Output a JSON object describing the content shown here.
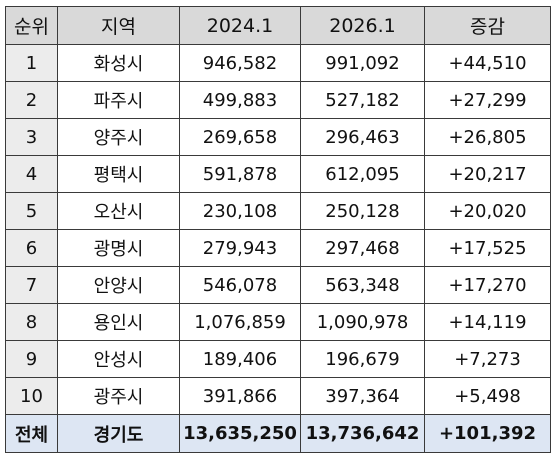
{
  "table": {
    "headers": [
      "순위",
      "지역",
      "2024.1",
      "2026.1",
      "증감"
    ],
    "rows": [
      [
        "1",
        "화성시",
        "946,582",
        "991,092",
        "+44,510"
      ],
      [
        "2",
        "파주시",
        "499,883",
        "527,182",
        "+27,299"
      ],
      [
        "3",
        "양주시",
        "269,658",
        "296,463",
        "+26,805"
      ],
      [
        "4",
        "평택시",
        "591,878",
        "612,095",
        "+20,217"
      ],
      [
        "5",
        "오산시",
        "230,108",
        "250,128",
        "+20,020"
      ],
      [
        "6",
        "광명시",
        "279,943",
        "297,468",
        "+17,525"
      ],
      [
        "7",
        "안양시",
        "546,078",
        "563,348",
        "+17,270"
      ],
      [
        "8",
        "용인시",
        "1,076,859",
        "1,090,978",
        "+14,119"
      ],
      [
        "9",
        "안성시",
        "189,406",
        "196,679",
        "+7,273"
      ],
      [
        "10",
        "광주시",
        "391,866",
        "397,364",
        "+5,498"
      ]
    ],
    "total": [
      "전체",
      "경기도",
      "13,635,250",
      "13,736,642",
      "+101,392"
    ]
  },
  "colors": {
    "header_bg": "#d9d9d9",
    "rank_bg": "#ececec",
    "total_bg": "#dde6f3",
    "border": "#3a3a3a"
  }
}
